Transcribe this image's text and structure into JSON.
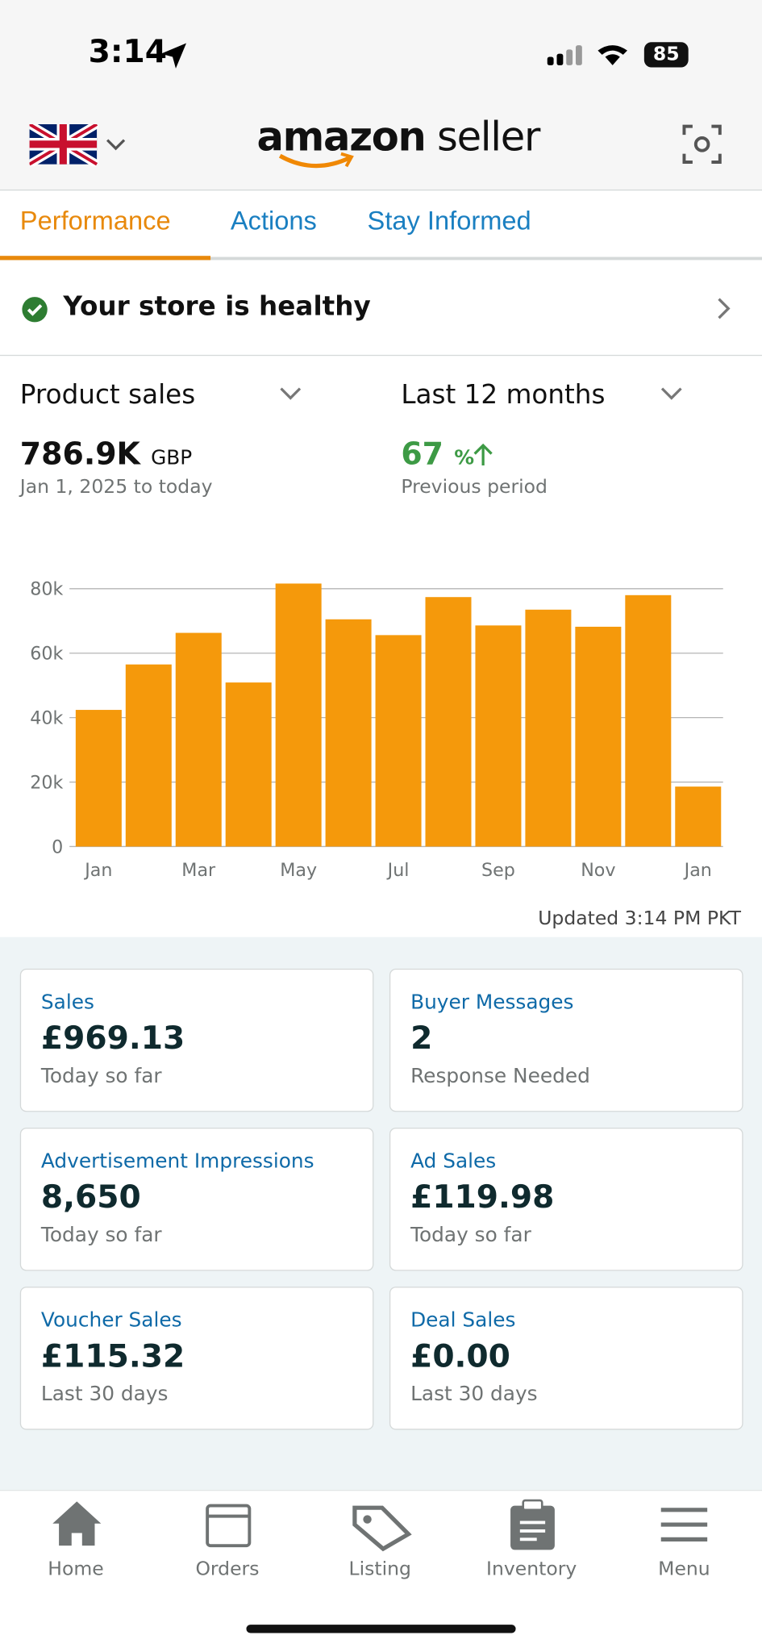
{
  "status_bar": {
    "time": "3:14",
    "battery": "85"
  },
  "header": {
    "logo_main": "amazon",
    "logo_sub": "seller"
  },
  "tabs": [
    "Performance",
    "Actions",
    "Stay Informed"
  ],
  "health": {
    "text": "Your store is healthy"
  },
  "summary": {
    "metric": "Product sales",
    "period": "Last 12 months",
    "total": "786.9K",
    "currency": "GBP",
    "range": "Jan 1, 2025 to today",
    "change": "67",
    "change_unit": "%",
    "change_note": "Previous period"
  },
  "chart_data": {
    "type": "bar",
    "color": "#f5990b",
    "grid": true,
    "categories": [
      "Jan",
      null,
      "Mar",
      null,
      "May",
      null,
      "Jul",
      null,
      "Sep",
      null,
      "Nov",
      null,
      "Jan"
    ],
    "values": [
      42400,
      56500,
      66300,
      50900,
      81600,
      70500,
      65600,
      77400,
      68600,
      73500,
      68200,
      78000,
      18600
    ],
    "ylim": [
      0,
      82000
    ],
    "yticks": [
      0,
      {
        "value": 20000,
        "label": "20k"
      },
      {
        "value": 40000,
        "label": "40k"
      },
      {
        "value": 60000,
        "label": "60k"
      },
      {
        "value": 80000,
        "label": "80k"
      }
    ]
  },
  "updated": "Updated 3:14 PM PKT",
  "cards": [
    {
      "title": "Sales",
      "value": "£969.13",
      "note": "Today so far"
    },
    {
      "title": "Buyer Messages",
      "value": "2",
      "note": "Response Needed"
    },
    {
      "title": "Advertisement Impressions",
      "value": "8,650",
      "note": "Today so far"
    },
    {
      "title": "Ad Sales",
      "value": "£119.98",
      "note": "Today so far"
    },
    {
      "title": "Voucher Sales",
      "value": "£115.32",
      "note": "Last 30 days"
    },
    {
      "title": "Deal Sales",
      "value": "£0.00",
      "note": "Last 30 days"
    }
  ],
  "nav": [
    "Home",
    "Orders",
    "Listing",
    "Inventory",
    "Menu"
  ]
}
